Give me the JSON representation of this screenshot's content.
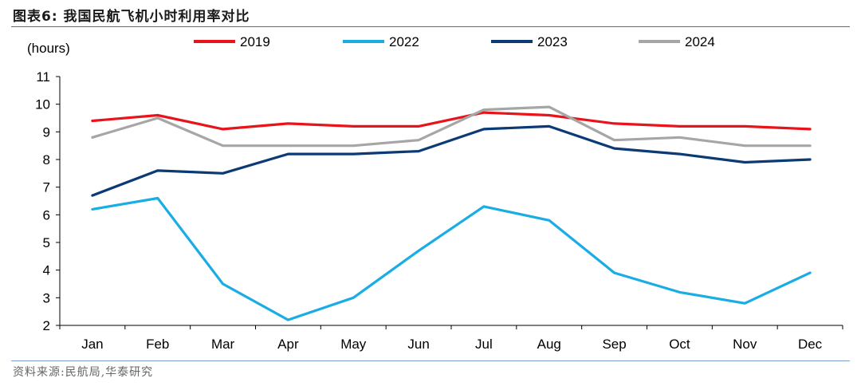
{
  "figure_title": "图表6:  我国民航飞机小时利用率对比",
  "source_note": "资料来源:民航局,华泰研究",
  "colors": {
    "2019": "#e8141b",
    "2022": "#1aade5",
    "2023": "#0b3a75",
    "2024": "#a6a6a6"
  },
  "chart_data": {
    "type": "line",
    "unit_label": "(hours)",
    "categories": [
      "Jan",
      "Feb",
      "Mar",
      "Apr",
      "May",
      "Jun",
      "Jul",
      "Aug",
      "Sep",
      "Oct",
      "Nov",
      "Dec"
    ],
    "ylim": [
      2,
      11
    ],
    "yticks": [
      2,
      3,
      4,
      5,
      6,
      7,
      8,
      9,
      10,
      11
    ],
    "grid": false,
    "legend_position": "top",
    "series": [
      {
        "name": "2019",
        "values": [
          9.4,
          9.6,
          9.1,
          9.3,
          9.2,
          9.2,
          9.7,
          9.6,
          9.3,
          9.2,
          9.2,
          9.1
        ]
      },
      {
        "name": "2022",
        "values": [
          6.2,
          6.6,
          3.5,
          2.2,
          3.0,
          4.7,
          6.3,
          5.8,
          3.9,
          3.2,
          2.8,
          3.9
        ]
      },
      {
        "name": "2023",
        "values": [
          6.7,
          7.6,
          7.5,
          8.2,
          8.2,
          8.3,
          9.1,
          9.2,
          8.4,
          8.2,
          7.9,
          8.0
        ]
      },
      {
        "name": "2024",
        "values": [
          8.8,
          9.5,
          8.5,
          8.5,
          8.5,
          8.7,
          9.8,
          9.9,
          8.7,
          8.8,
          8.5,
          8.5
        ]
      }
    ]
  }
}
